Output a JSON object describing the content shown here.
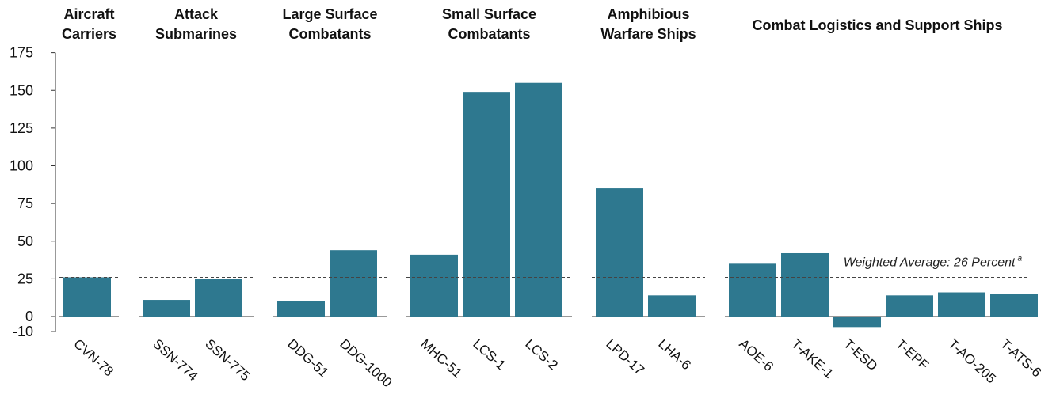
{
  "chart_data": {
    "type": "bar",
    "ylim": [
      -10,
      175
    ],
    "yticks": [
      "175",
      "150",
      "125",
      "100",
      "75",
      "50",
      "25",
      "0",
      "-10"
    ],
    "ytick_values": [
      175,
      150,
      125,
      100,
      75,
      50,
      25,
      0,
      -10
    ],
    "bar_color": "#2e788f",
    "reference_line": {
      "value": 26,
      "label": "Weighted Average: 26 Percent",
      "superscript": "a"
    },
    "groups": [
      {
        "name": "Aircraft Carriers",
        "title_lines": [
          "Aircraft",
          "Carriers"
        ],
        "categories": [
          "CVN-78"
        ],
        "values": [
          26
        ]
      },
      {
        "name": "Attack Submarines",
        "title_lines": [
          "Attack",
          "Submarines"
        ],
        "categories": [
          "SSN-774",
          "SSN-775"
        ],
        "values": [
          11,
          25
        ]
      },
      {
        "name": "Large Surface Combatants",
        "title_lines": [
          "Large Surface",
          "Combatants"
        ],
        "categories": [
          "DDG-51",
          "DDG-1000"
        ],
        "values": [
          10,
          44
        ]
      },
      {
        "name": "Small Surface Combatants",
        "title_lines": [
          "Small Surface",
          "Combatants"
        ],
        "categories": [
          "MHC-51",
          "LCS-1",
          "LCS-2"
        ],
        "values": [
          41,
          149,
          155
        ]
      },
      {
        "name": "Amphibious Warfare Ships",
        "title_lines": [
          "Amphibious",
          "Warfare Ships"
        ],
        "categories": [
          "LPD-17",
          "LHA-6"
        ],
        "values": [
          85,
          14
        ]
      },
      {
        "name": "Combat Logistics and Support Ships",
        "title_lines": [
          "Combat Logistics and Support Ships"
        ],
        "categories": [
          "AOE-6",
          "T-AKE-1",
          "T-ESD",
          "T-EPF",
          "T-AO-205",
          "T-ATS-6"
        ],
        "values": [
          35,
          42,
          -7,
          14,
          16,
          15
        ]
      }
    ]
  }
}
